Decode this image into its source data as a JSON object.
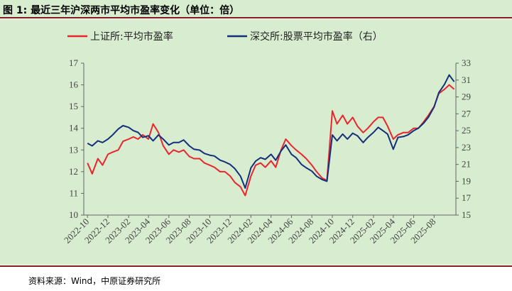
{
  "title": "图 1: 最近三年沪深两市平均市盈率变化（单位：倍）",
  "source": "资料来源：Wind，中原证券研究所",
  "chart_data": {
    "type": "line",
    "legend_position": "top",
    "grid": false,
    "ylim_left": [
      10,
      17
    ],
    "ylim_right": [
      15,
      33
    ],
    "left_ticks": [
      10,
      11,
      12,
      13,
      14,
      15,
      16,
      17
    ],
    "right_ticks": [
      15,
      17,
      19,
      21,
      23,
      25,
      27,
      29,
      31,
      33
    ],
    "x_tick_labels": [
      "2022-10",
      "2022-12",
      "2023-02",
      "2023-04",
      "2023-06",
      "2023-08",
      "2023-10",
      "2023-12",
      "2024-02",
      "2024-04",
      "2024-06",
      "2024-08",
      "2024-10",
      "2024-12",
      "2025-02",
      "2025-04",
      "2025-06",
      "2025-08"
    ],
    "series": [
      {
        "name": "上证所:平均市盈率",
        "axis": "left",
        "color": "#e8262b",
        "x": [
          "2022-10-01",
          "2022-10-15",
          "2022-11-01",
          "2022-11-15",
          "2022-12-01",
          "2022-12-15",
          "2023-01-01",
          "2023-01-15",
          "2023-02-01",
          "2023-02-15",
          "2023-03-01",
          "2023-03-15",
          "2023-04-01",
          "2023-04-15",
          "2023-05-01",
          "2023-05-15",
          "2023-06-01",
          "2023-06-15",
          "2023-07-01",
          "2023-07-15",
          "2023-08-01",
          "2023-08-15",
          "2023-09-01",
          "2023-09-15",
          "2023-10-01",
          "2023-10-15",
          "2023-11-01",
          "2023-11-15",
          "2023-12-01",
          "2023-12-15",
          "2024-01-01",
          "2024-01-15",
          "2024-02-01",
          "2024-02-15",
          "2024-03-01",
          "2024-03-15",
          "2024-04-01",
          "2024-04-15",
          "2024-05-01",
          "2024-05-15",
          "2024-06-01",
          "2024-06-15",
          "2024-07-01",
          "2024-07-15",
          "2024-08-01",
          "2024-08-15",
          "2024-09-01",
          "2024-09-15",
          "2024-10-01",
          "2024-10-15",
          "2024-11-01",
          "2024-11-15",
          "2024-12-01",
          "2024-12-15",
          "2025-01-01",
          "2025-01-15",
          "2025-02-01",
          "2025-02-15",
          "2025-03-01",
          "2025-03-15",
          "2025-04-01",
          "2025-04-15",
          "2025-05-01",
          "2025-05-15",
          "2025-06-01",
          "2025-06-15",
          "2025-07-01",
          "2025-07-15",
          "2025-08-01",
          "2025-08-15",
          "2025-09-01",
          "2025-09-15",
          "2025-09-30"
        ],
        "values": [
          12.4,
          11.9,
          12.6,
          12.3,
          12.8,
          12.9,
          13.0,
          13.4,
          13.5,
          13.6,
          13.5,
          13.7,
          13.5,
          14.2,
          13.8,
          13.2,
          12.8,
          13.0,
          12.9,
          13.0,
          12.7,
          12.6,
          12.6,
          12.4,
          12.3,
          12.2,
          12.0,
          12.0,
          11.8,
          11.5,
          11.3,
          10.9,
          11.8,
          12.3,
          12.4,
          12.2,
          12.5,
          12.2,
          13.0,
          13.5,
          13.2,
          13.0,
          12.8,
          12.6,
          12.3,
          12.0,
          11.7,
          11.6,
          14.8,
          14.2,
          14.6,
          14.2,
          14.5,
          14.1,
          13.8,
          14.0,
          14.3,
          14.5,
          14.5,
          14.1,
          13.5,
          13.7,
          13.8,
          13.8,
          14.0,
          14.0,
          14.3,
          14.6,
          15.0,
          15.6,
          15.8,
          16.0,
          15.8
        ]
      },
      {
        "name": "深交所:股票平均市盈率（右）",
        "axis": "right",
        "color": "#13307a",
        "x": [
          "2022-10-01",
          "2022-10-15",
          "2022-11-01",
          "2022-11-15",
          "2022-12-01",
          "2022-12-15",
          "2023-01-01",
          "2023-01-15",
          "2023-02-01",
          "2023-02-15",
          "2023-03-01",
          "2023-03-15",
          "2023-04-01",
          "2023-04-15",
          "2023-05-01",
          "2023-05-15",
          "2023-06-01",
          "2023-06-15",
          "2023-07-01",
          "2023-07-15",
          "2023-08-01",
          "2023-08-15",
          "2023-09-01",
          "2023-09-15",
          "2023-10-01",
          "2023-10-15",
          "2023-11-01",
          "2023-11-15",
          "2023-12-01",
          "2023-12-15",
          "2024-01-01",
          "2024-01-15",
          "2024-02-01",
          "2024-02-15",
          "2024-03-01",
          "2024-03-15",
          "2024-04-01",
          "2024-04-15",
          "2024-05-01",
          "2024-05-15",
          "2024-06-01",
          "2024-06-15",
          "2024-07-01",
          "2024-07-15",
          "2024-08-01",
          "2024-08-15",
          "2024-09-01",
          "2024-09-15",
          "2024-10-01",
          "2024-10-15",
          "2024-11-01",
          "2024-11-15",
          "2024-12-01",
          "2024-12-15",
          "2025-01-01",
          "2025-01-15",
          "2025-02-01",
          "2025-02-15",
          "2025-03-01",
          "2025-03-15",
          "2025-04-01",
          "2025-04-15",
          "2025-05-01",
          "2025-05-15",
          "2025-06-01",
          "2025-06-15",
          "2025-07-01",
          "2025-07-15",
          "2025-08-01",
          "2025-08-15",
          "2025-09-01",
          "2025-09-15",
          "2025-09-30"
        ],
        "values": [
          23.5,
          23.2,
          23.8,
          23.6,
          24.0,
          24.5,
          25.2,
          25.6,
          25.4,
          25.0,
          24.8,
          24.2,
          24.4,
          23.8,
          24.5,
          24.0,
          23.3,
          23.6,
          23.6,
          23.9,
          23.2,
          22.8,
          22.7,
          22.3,
          22.1,
          22.0,
          21.5,
          21.3,
          21.0,
          20.5,
          19.6,
          18.2,
          20.6,
          21.4,
          21.8,
          21.6,
          22.2,
          21.5,
          22.6,
          23.3,
          22.2,
          21.8,
          21.0,
          20.6,
          20.2,
          19.6,
          19.2,
          19.0,
          24.5,
          23.8,
          24.6,
          24.0,
          24.7,
          24.4,
          23.6,
          24.2,
          24.8,
          25.4,
          25.0,
          24.6,
          22.8,
          24.2,
          24.3,
          24.5,
          25.0,
          25.3,
          25.9,
          26.6,
          27.8,
          29.5,
          30.5,
          31.6,
          30.8
        ]
      }
    ]
  }
}
